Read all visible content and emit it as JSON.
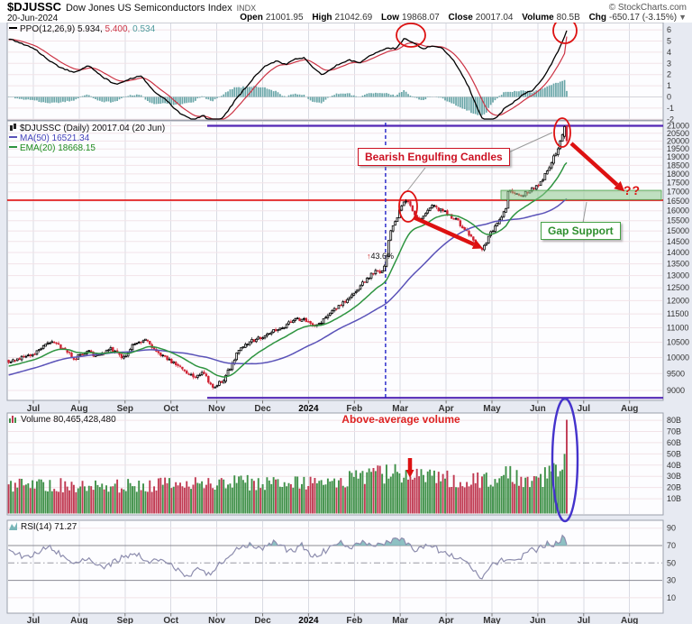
{
  "header": {
    "symbol": "$DJUSSC",
    "name": "Dow Jones US Semiconductors Index",
    "exchange": "INDX",
    "brand": "© StockCharts.com",
    "date": "20-Jun-2024",
    "quote": [
      {
        "label": "Open",
        "value": "21001.95"
      },
      {
        "label": "High",
        "value": "21042.69"
      },
      {
        "label": "Low",
        "value": "19868.07"
      },
      {
        "label": "Close",
        "value": "20017.04"
      },
      {
        "label": "Volume",
        "value": "80.5B"
      },
      {
        "label": "Chg",
        "value": "-650.17 (-3.15%)"
      }
    ],
    "chg_arrow": "▼"
  },
  "legends": {
    "ppo_name": "PPO(12,26,9)",
    "ppo_v1": "5.934,",
    "ppo_v2": "5.400,",
    "ppo_v3": "0.534",
    "price_title": "$DJUSSC (Daily) 20017.04 (20 Jun)",
    "ma_label": "MA(50) 16521.34",
    "ema_label": "EMA(20) 18668.15",
    "volume_label": "Volume 80,465,428,480",
    "rsi_label": "RSI(14) 71.27"
  },
  "annotations": {
    "bearish": "Bearish Engulfing Candles",
    "gap_support": "Gap Support",
    "above_avg": "Above-average volume",
    "question": "??",
    "pct_arrow": "↑",
    "pct": "43.6%"
  },
  "axes": {
    "months": [
      "Jul",
      "Aug",
      "Sep",
      "Oct",
      "Nov",
      "Dec",
      "2024",
      "Feb",
      "Mar",
      "Apr",
      "May",
      "Jun",
      "Jul",
      "Aug"
    ],
    "price_ticks_top": 21000,
    "price_ticks_bottom": 9000,
    "price_step": 500,
    "ppo_ticks": [
      6,
      5,
      4,
      3,
      2,
      1,
      0,
      -1,
      -2
    ],
    "volume_ticks": [
      "80B",
      "70B",
      "60B",
      "50B",
      "40B",
      "30B",
      "20B",
      "10B"
    ],
    "rsi_ticks": [
      90,
      70,
      50,
      30,
      10
    ]
  },
  "colors": {
    "up": "#000000",
    "down": "#cf2233",
    "ma50": "#5a52b8",
    "ema20": "#2e9440",
    "ppo": "#000000",
    "signal": "#cc3344",
    "hist": "#6aa6a8",
    "vol_up": "#3f9048",
    "vol_down": "#c03a52",
    "rsi": "#8d8dae",
    "rsi_fill": "#7ab6b8",
    "ann_red": "#dd1111",
    "ann_purple": "#5227b5",
    "ann_blue": "#2020c8",
    "band_fill": "#8cc98c",
    "band_edge": "#55a855",
    "grid_v": "#d9dbe3",
    "grid_h": "#f2e3e8",
    "border": "#9aa0ab",
    "axis_text": "#333333",
    "level_line": "#8a8a92",
    "connector": "#999999",
    "vol_ellipse": "#4433cc"
  },
  "chart_data": {
    "type": "multi-panel-financial",
    "x_axis": {
      "start": "Jul 2023",
      "end": "Aug 2024",
      "unit": "month_fraction_from_Jul2023"
    },
    "panels": [
      {
        "id": "ppo",
        "type": "line+histogram",
        "indicator": "PPO(12,26,9)",
        "last": {
          "ppo": 5.934,
          "signal": 5.4,
          "hist": 0.534
        },
        "ylim": [
          -2.5,
          6.5
        ],
        "yticks": [
          6,
          5,
          4,
          3,
          2,
          1,
          0,
          -1,
          -2
        ],
        "keypoints": [
          [
            -3,
            3.2
          ],
          [
            -2.2,
            4.2
          ],
          [
            -1.2,
            5.0
          ],
          [
            -0.53,
            5.2
          ],
          [
            0,
            4.4
          ],
          [
            0.3,
            3.4
          ],
          [
            0.6,
            2.6
          ],
          [
            0.9,
            2.2
          ],
          [
            1.2,
            2.8
          ],
          [
            1.5,
            1.8
          ],
          [
            1.8,
            1.1
          ],
          [
            2.1,
            1.6
          ],
          [
            2.35,
            1.9
          ],
          [
            2.6,
            0.6
          ],
          [
            2.9,
            -0.3
          ],
          [
            3.2,
            -1.5
          ],
          [
            3.5,
            -2.1
          ],
          [
            3.7,
            -1.6
          ],
          [
            3.9,
            -2.4
          ],
          [
            4.15,
            -1.8
          ],
          [
            4.4,
            -0.3
          ],
          [
            4.7,
            1.2
          ],
          [
            5,
            2.6
          ],
          [
            5.3,
            3.2
          ],
          [
            5.5,
            2.9
          ],
          [
            5.7,
            3.4
          ],
          [
            5.9,
            3.5
          ],
          [
            6.1,
            2.6
          ],
          [
            6.3,
            2
          ],
          [
            6.6,
            2.8
          ],
          [
            6.9,
            3.3
          ],
          [
            7.1,
            3
          ],
          [
            7.3,
            3.6
          ],
          [
            7.5,
            4
          ],
          [
            7.7,
            4.4
          ],
          [
            7.9,
            4.3
          ],
          [
            8.1,
            5.3
          ],
          [
            8.25,
            4.9
          ],
          [
            8.5,
            4.3
          ],
          [
            8.7,
            4.6
          ],
          [
            8.9,
            4.4
          ],
          [
            9.1,
            3.6
          ],
          [
            9.3,
            2.4
          ],
          [
            9.5,
            0.8
          ],
          [
            9.7,
            -1.2
          ],
          [
            9.85,
            -2.4
          ],
          [
            10.1,
            -1.9
          ],
          [
            10.3,
            -0.9
          ],
          [
            10.5,
            -0.4
          ],
          [
            10.7,
            0.3
          ],
          [
            10.9,
            0.6
          ],
          [
            11.1,
            1.6
          ],
          [
            11.3,
            3
          ],
          [
            11.5,
            4.6
          ],
          [
            11.63,
            5.934
          ]
        ]
      },
      {
        "id": "price",
        "type": "candlestick",
        "scale": "log",
        "ylim": [
          8800,
          21500
        ],
        "last_ohlc": {
          "open": 21001.95,
          "high": 21042.69,
          "low": 19868.07,
          "close": 20017.04
        },
        "overlays": [
          "MA(50)",
          "EMA(20)"
        ],
        "support_zone": [
          16580,
          17080
        ],
        "resistance_line": 16550,
        "channel_lines": [
          21000,
          8790
        ],
        "event_vline_monthfrac": 7.68,
        "event_gain_pct": "43.6%",
        "close_keypoints": [
          [
            -3,
            8950
          ],
          [
            -2.2,
            9250
          ],
          [
            -1.4,
            9600
          ],
          [
            -0.8,
            9800
          ],
          [
            -0.53,
            9900
          ],
          [
            0,
            10050
          ],
          [
            0.35,
            10550
          ],
          [
            0.6,
            10350
          ],
          [
            0.9,
            9950
          ],
          [
            1.15,
            10200
          ],
          [
            1.4,
            10050
          ],
          [
            1.7,
            10300
          ],
          [
            1.95,
            9950
          ],
          [
            2.2,
            10450
          ],
          [
            2.45,
            10550
          ],
          [
            2.7,
            10150
          ],
          [
            2.95,
            9900
          ],
          [
            3.2,
            9700
          ],
          [
            3.5,
            9400
          ],
          [
            3.7,
            9550
          ],
          [
            3.9,
            9050
          ],
          [
            4.15,
            9300
          ],
          [
            4.45,
            10150
          ],
          [
            4.7,
            10500
          ],
          [
            4.95,
            10650
          ],
          [
            5.2,
            10850
          ],
          [
            5.45,
            11050
          ],
          [
            5.7,
            11300
          ],
          [
            5.95,
            11250
          ],
          [
            6.15,
            11000
          ],
          [
            6.4,
            11450
          ],
          [
            6.65,
            11800
          ],
          [
            6.9,
            12150
          ],
          [
            7.1,
            12500
          ],
          [
            7.3,
            12900
          ],
          [
            7.5,
            13250
          ],
          [
            7.6,
            13100
          ],
          [
            7.68,
            13450
          ],
          [
            7.74,
            14550
          ],
          [
            7.85,
            15300
          ],
          [
            7.95,
            15700
          ],
          [
            8.05,
            16400
          ],
          [
            8.15,
            16600
          ],
          [
            8.28,
            15900
          ],
          [
            8.4,
            15600
          ],
          [
            8.55,
            15850
          ],
          [
            8.7,
            16250
          ],
          [
            8.85,
            16050
          ],
          [
            9,
            15900
          ],
          [
            9.15,
            15650
          ],
          [
            9.3,
            15350
          ],
          [
            9.5,
            14800
          ],
          [
            9.65,
            14350
          ],
          [
            9.78,
            14050
          ],
          [
            9.95,
            14800
          ],
          [
            10.1,
            15350
          ],
          [
            10.22,
            15800
          ],
          [
            10.3,
            16050
          ],
          [
            10.36,
            17100
          ],
          [
            10.5,
            17000
          ],
          [
            10.65,
            16800
          ],
          [
            10.8,
            17050
          ],
          [
            10.95,
            17250
          ],
          [
            11.05,
            17500
          ],
          [
            11.15,
            17900
          ],
          [
            11.3,
            18700
          ],
          [
            11.42,
            19400
          ],
          [
            11.52,
            20200
          ],
          [
            11.59,
            20950
          ],
          [
            11.63,
            20017
          ]
        ]
      },
      {
        "id": "volume",
        "type": "bar",
        "unit": "billions",
        "last": 80.465,
        "keypoints": [
          [
            -3,
            20
          ],
          [
            -0.5,
            22
          ],
          [
            0.5,
            22
          ],
          [
            1.5,
            21
          ],
          [
            2.5,
            22
          ],
          [
            3.5,
            23
          ],
          [
            4.5,
            24
          ],
          [
            5.5,
            24
          ],
          [
            6.5,
            26
          ],
          [
            7.2,
            28
          ],
          [
            7.7,
            33
          ],
          [
            8.2,
            33
          ],
          [
            8.6,
            29
          ],
          [
            9,
            28
          ],
          [
            9.5,
            26
          ],
          [
            10,
            26
          ],
          [
            10.36,
            32
          ],
          [
            10.6,
            26
          ],
          [
            11,
            27
          ],
          [
            11.25,
            32
          ],
          [
            11.45,
            42
          ],
          [
            11.55,
            48
          ],
          [
            11.6,
            50
          ],
          [
            11.63,
            80.465
          ]
        ]
      },
      {
        "id": "rsi",
        "type": "line",
        "indicator": "RSI(14)",
        "last": 71.27,
        "levels": [
          70,
          50,
          30
        ],
        "keypoints": [
          [
            -3,
            55
          ],
          [
            -0.53,
            63
          ],
          [
            -0.1,
            57
          ],
          [
            0.3,
            68
          ],
          [
            0.6,
            60
          ],
          [
            0.9,
            48
          ],
          [
            1.2,
            55
          ],
          [
            1.5,
            45
          ],
          [
            1.8,
            52
          ],
          [
            2.2,
            62
          ],
          [
            2.5,
            50
          ],
          [
            2.8,
            55
          ],
          [
            3.1,
            42
          ],
          [
            3.4,
            34
          ],
          [
            3.6,
            45
          ],
          [
            3.85,
            36
          ],
          [
            4.1,
            50
          ],
          [
            4.4,
            65
          ],
          [
            4.7,
            72
          ],
          [
            5,
            68
          ],
          [
            5.3,
            75
          ],
          [
            5.6,
            62
          ],
          [
            5.85,
            72
          ],
          [
            6.1,
            55
          ],
          [
            6.4,
            65
          ],
          [
            6.7,
            74
          ],
          [
            6.9,
            68
          ],
          [
            7.2,
            76
          ],
          [
            7.4,
            68
          ],
          [
            7.6,
            72
          ],
          [
            7.9,
            78
          ],
          [
            8.15,
            74
          ],
          [
            8.3,
            62
          ],
          [
            8.5,
            70
          ],
          [
            8.8,
            66
          ],
          [
            9.1,
            58
          ],
          [
            9.4,
            52
          ],
          [
            9.6,
            42
          ],
          [
            9.75,
            31
          ],
          [
            10,
            48
          ],
          [
            10.3,
            55
          ],
          [
            10.5,
            52
          ],
          [
            10.8,
            63
          ],
          [
            11,
            66
          ],
          [
            11.2,
            72
          ],
          [
            11.35,
            70
          ],
          [
            11.5,
            78
          ],
          [
            11.58,
            83
          ],
          [
            11.63,
            71.27
          ]
        ]
      }
    ]
  }
}
